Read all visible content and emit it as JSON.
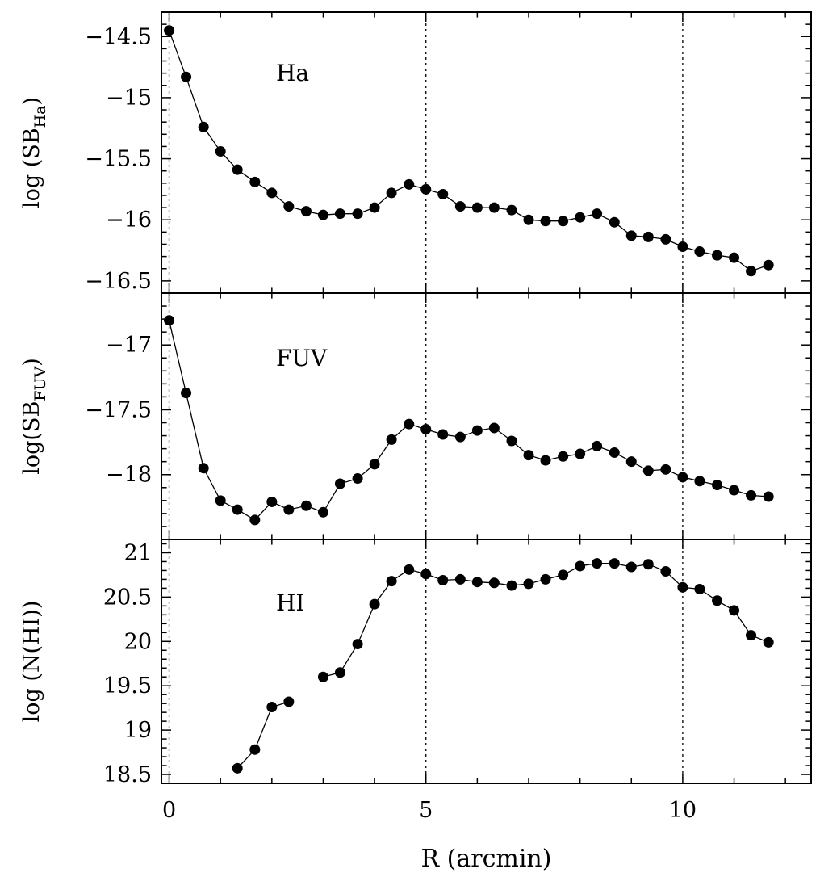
{
  "chart_data": [
    {
      "type": "line",
      "panel_label": "Ha",
      "ylabel_main": "log  (SB",
      "ylabel_sub": "Ha",
      "ylabel_close": ")",
      "ylim": [
        -16.6,
        -14.3
      ],
      "yticks": [
        -14.5,
        -15,
        -15.5,
        -16,
        -16.5
      ],
      "ytick_labels": [
        "−14.5",
        "−15",
        "−15.5",
        "−16",
        "−16.5"
      ],
      "x": [
        0,
        0.33,
        0.67,
        1,
        1.33,
        1.67,
        2,
        2.33,
        2.67,
        3,
        3.33,
        3.67,
        4,
        4.33,
        4.67,
        5,
        5.33,
        5.67,
        6,
        6.33,
        6.67,
        7,
        7.33,
        7.67,
        8,
        8.33,
        8.67,
        9,
        9.33,
        9.67,
        10,
        10.33,
        10.67,
        11,
        11.33,
        11.67
      ],
      "y": [
        -14.45,
        -14.83,
        -15.24,
        -15.44,
        -15.59,
        -15.69,
        -15.78,
        -15.89,
        -15.93,
        -15.96,
        -15.95,
        -15.95,
        -15.9,
        -15.78,
        -15.71,
        -15.75,
        -15.79,
        -15.89,
        -15.9,
        -15.9,
        -15.92,
        -16.0,
        -16.01,
        -16.01,
        -15.98,
        -15.95,
        -16.02,
        -16.13,
        -16.14,
        -16.16,
        -16.22,
        -16.26,
        -16.29,
        -16.31,
        -16.42,
        -16.37
      ],
      "segments": [
        [
          0,
          35
        ]
      ]
    },
    {
      "type": "line",
      "panel_label": "FUV",
      "ylabel_main": "log(SB",
      "ylabel_sub": "FUV",
      "ylabel_close": ")",
      "ylim": [
        -18.5,
        -16.6
      ],
      "yticks": [
        -17,
        -17.5,
        -18
      ],
      "ytick_labels": [
        "−17",
        "−17.5",
        "−18"
      ],
      "x": [
        0,
        0.33,
        0.67,
        1,
        1.33,
        1.67,
        2,
        2.33,
        2.67,
        3,
        3.33,
        3.67,
        4,
        4.33,
        4.67,
        5,
        5.33,
        5.67,
        6,
        6.33,
        6.67,
        7,
        7.33,
        7.67,
        8,
        8.33,
        8.67,
        9,
        9.33,
        9.67,
        10,
        10.33,
        10.67,
        11,
        11.33,
        11.67
      ],
      "y": [
        -16.81,
        -17.37,
        -17.95,
        -18.2,
        -18.27,
        -18.35,
        -18.21,
        -18.27,
        -18.24,
        -18.29,
        -18.07,
        -18.03,
        -17.92,
        -17.73,
        -17.61,
        -17.65,
        -17.69,
        -17.71,
        -17.66,
        -17.64,
        -17.74,
        -17.85,
        -17.89,
        -17.86,
        -17.84,
        -17.78,
        -17.83,
        -17.9,
        -17.97,
        -17.96,
        -18.02,
        -18.05,
        -18.08,
        -18.12,
        -18.16,
        -18.17
      ],
      "segments": [
        [
          0,
          35
        ]
      ]
    },
    {
      "type": "line",
      "panel_label": "HI",
      "ylabel_main": "log  (N(HI))",
      "ylim": [
        18.4,
        21.15
      ],
      "yticks": [
        18.5,
        19,
        19.5,
        20,
        20.5,
        21
      ],
      "ytick_labels": [
        "18.5",
        "19",
        "19.5",
        "20",
        "20.5",
        "21"
      ],
      "x": [
        1.33,
        1.67,
        2,
        2.33,
        3,
        3.33,
        3.67,
        4,
        4.33,
        4.67,
        5,
        5.33,
        5.67,
        6,
        6.33,
        6.67,
        7,
        7.33,
        7.67,
        8,
        8.33,
        8.67,
        9,
        9.33,
        9.67,
        10,
        10.33,
        10.67,
        11,
        11.33,
        11.67
      ],
      "y": [
        18.57,
        18.78,
        19.26,
        19.32,
        19.6,
        19.65,
        19.97,
        20.42,
        20.68,
        20.81,
        20.76,
        20.69,
        20.7,
        20.67,
        20.66,
        20.63,
        20.65,
        20.7,
        20.75,
        20.85,
        20.88,
        20.88,
        20.84,
        20.87,
        20.79,
        20.61,
        20.59,
        20.46,
        20.35,
        20.07,
        19.99
      ],
      "segments": [
        [
          0,
          3
        ],
        [
          4,
          30
        ]
      ]
    }
  ],
  "shared_x": {
    "xlabel": "R  (arcmin)",
    "xlim": [
      -0.15,
      12.5
    ],
    "xticks": [
      0,
      5,
      10
    ],
    "xtick_labels": [
      "0",
      "5",
      "10"
    ],
    "dotted_reference_lines": [
      0,
      5,
      10
    ]
  }
}
